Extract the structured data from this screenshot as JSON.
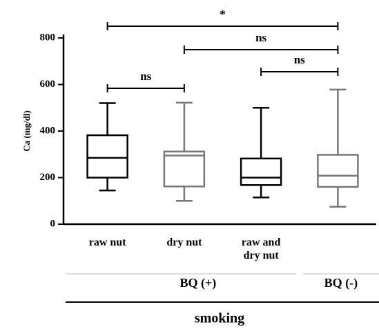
{
  "chart_data": {
    "type": "box",
    "y_label": "Ca (mg/dl)",
    "categories": [
      "raw nut",
      "dry nut",
      "raw and dry nut",
      null
    ],
    "boxes": [
      {
        "min": 145,
        "q1": 200,
        "median": 285,
        "q3": 382,
        "max": 520,
        "color": "#000000"
      },
      {
        "min": 100,
        "q1": 162,
        "median": 295,
        "q3": 312,
        "max": 522,
        "color": "#777777"
      },
      {
        "min": 115,
        "q1": 168,
        "median": 200,
        "q3": 282,
        "max": 500,
        "color": "#000000"
      },
      {
        "min": 75,
        "q1": 160,
        "median": 208,
        "q3": 298,
        "max": 578,
        "color": "#777777"
      }
    ],
    "ylim": [
      0,
      800
    ],
    "yticks": [
      0,
      200,
      400,
      600,
      800
    ],
    "groups": [
      {
        "label": "BQ (+)",
        "span": [
          0,
          2
        ]
      },
      {
        "label": "BQ (-)",
        "span": [
          3,
          3
        ]
      }
    ],
    "super_group": "smoking",
    "annotations": [
      {
        "label": "*",
        "span": [
          0,
          3
        ]
      },
      {
        "label": "ns",
        "span": [
          1,
          3
        ]
      },
      {
        "label": "ns",
        "span": [
          2,
          3
        ]
      },
      {
        "label": "ns",
        "span": [
          0,
          1
        ]
      }
    ]
  }
}
